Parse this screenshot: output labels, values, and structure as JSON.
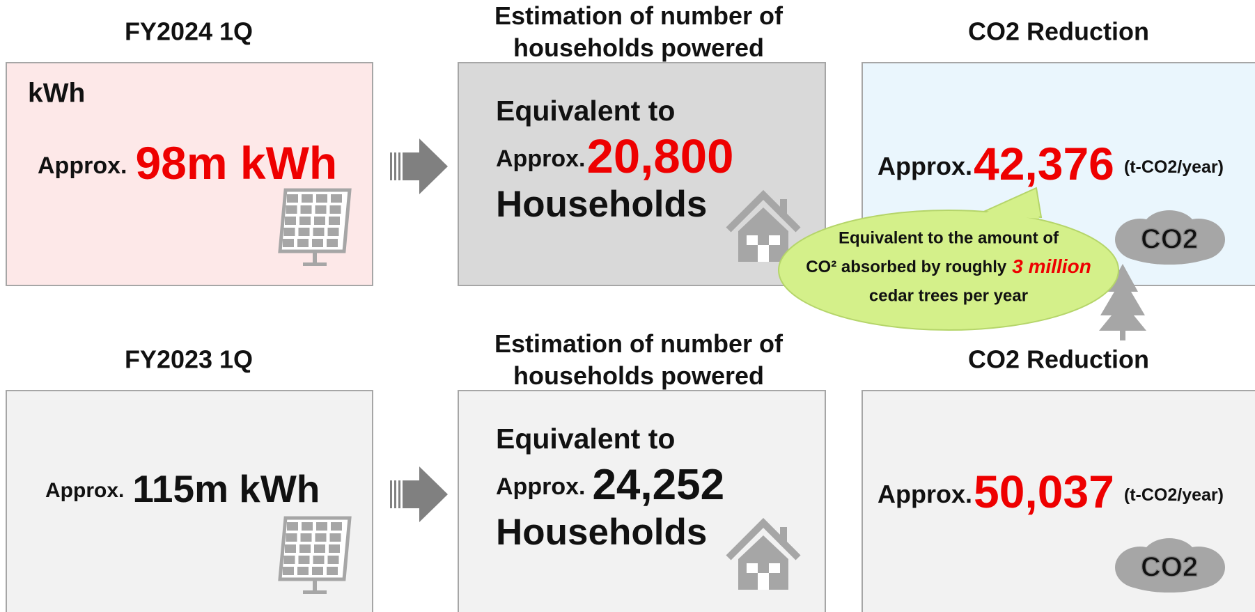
{
  "rows": [
    {
      "period": "FY2024 1Q",
      "energy": {
        "label": "kWh",
        "prefix": "Approx.",
        "value": "98m kWh"
      },
      "households": {
        "title": "Estimation of number of households powered",
        "intro": "Equivalent to",
        "prefix": "Approx.",
        "value": "20,800",
        "unit": "Households"
      },
      "co2": {
        "title": "CO2 Reduction",
        "prefix": "Approx.",
        "value": "42,376",
        "unit": "(t-CO2/year)",
        "icon_label": "CO2"
      }
    },
    {
      "period": "FY2023 1Q",
      "energy": {
        "prefix": "Approx.",
        "value": "115m kWh"
      },
      "households": {
        "title": "Estimation of number of households powered",
        "intro": "Equivalent to",
        "prefix": "Approx.",
        "value": "24,252",
        "unit": "Households"
      },
      "co2": {
        "title": "CO2 Reduction",
        "prefix": "Approx.",
        "value": "50,037",
        "unit": "(t-CO2/year)",
        "icon_label": "CO2"
      }
    }
  ],
  "callout": {
    "lines": [
      "Equivalent to the amount of",
      "CO² absorbed by roughly",
      "cedar trees per year"
    ],
    "highlight": "3 million"
  }
}
